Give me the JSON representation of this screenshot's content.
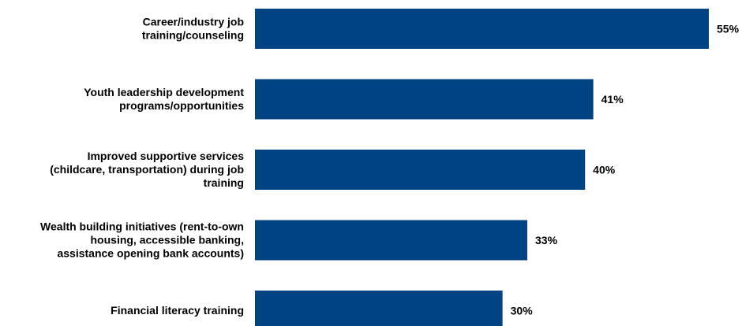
{
  "chart_data": {
    "type": "bar",
    "orientation": "horizontal",
    "categories": [
      [
        "Career/industry job",
        "training/counseling"
      ],
      [
        "Youth leadership development",
        "programs/opportunities"
      ],
      [
        "Improved supportive services",
        "(childcare, transportation) during job",
        "training"
      ],
      [
        "Wealth building initiatives (rent-to-own",
        "housing, accessible banking,",
        "assistance opening bank accounts)"
      ],
      [
        "Financial literacy training"
      ]
    ],
    "values": [
      55,
      41,
      40,
      33,
      30
    ],
    "value_labels": [
      "55%",
      "41%",
      "40%",
      "33%",
      "30%"
    ],
    "xlim": [
      0,
      55
    ],
    "bar_color": "#004385",
    "grid": false,
    "legend": "none"
  }
}
